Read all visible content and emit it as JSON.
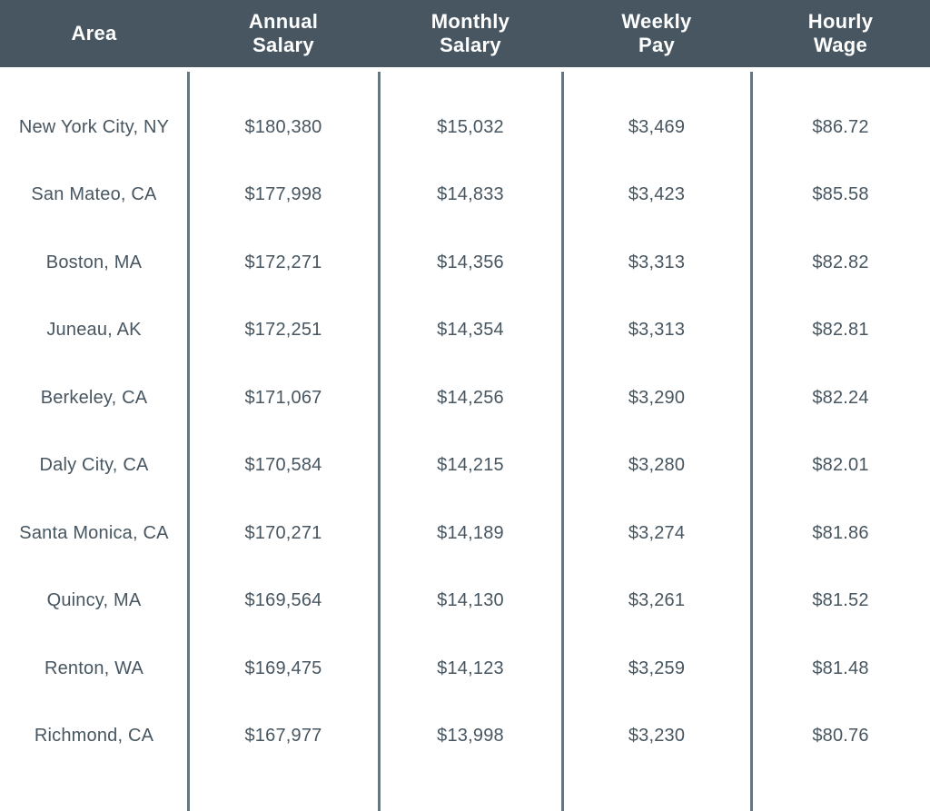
{
  "chart_data": {
    "type": "table",
    "columns": [
      {
        "key": "area",
        "label": "Area",
        "lines": [
          "Area"
        ]
      },
      {
        "key": "annual_salary",
        "label": "Annual Salary",
        "lines": [
          "Annual",
          "Salary"
        ]
      },
      {
        "key": "monthly_salary",
        "label": "Monthly Salary",
        "lines": [
          "Monthly",
          "Salary"
        ]
      },
      {
        "key": "weekly_pay",
        "label": "Weekly Pay",
        "lines": [
          "Weekly",
          "Pay"
        ]
      },
      {
        "key": "hourly_wage",
        "label": "Hourly Wage",
        "lines": [
          "Hourly",
          "Wage"
        ]
      }
    ],
    "rows": [
      [
        "New York City, NY",
        "$180,380",
        "$15,032",
        "$3,469",
        "$86.72"
      ],
      [
        "San Mateo, CA",
        "$177,998",
        "$14,833",
        "$3,423",
        "$85.58"
      ],
      [
        "Boston, MA",
        "$172,271",
        "$14,356",
        "$3,313",
        "$82.82"
      ],
      [
        "Juneau, AK",
        "$172,251",
        "$14,354",
        "$3,313",
        "$82.81"
      ],
      [
        "Berkeley, CA",
        "$171,067",
        "$14,256",
        "$3,290",
        "$82.24"
      ],
      [
        "Daly City, CA",
        "$170,584",
        "$14,215",
        "$3,280",
        "$82.01"
      ],
      [
        "Santa Monica, CA",
        "$170,271",
        "$14,189",
        "$3,274",
        "$81.86"
      ],
      [
        "Quincy, MA",
        "$169,564",
        "$14,130",
        "$3,261",
        "$81.52"
      ],
      [
        "Renton, WA",
        "$169,475",
        "$14,123",
        "$3,259",
        "$81.48"
      ],
      [
        "Richmond, CA",
        "$167,977",
        "$13,998",
        "$3,230",
        "$80.76"
      ]
    ]
  },
  "colors": {
    "header_bg": "#475660",
    "header_text": "#ffffff",
    "body_text": "#475660",
    "divider": "#66767e",
    "background": "#ffffff"
  }
}
